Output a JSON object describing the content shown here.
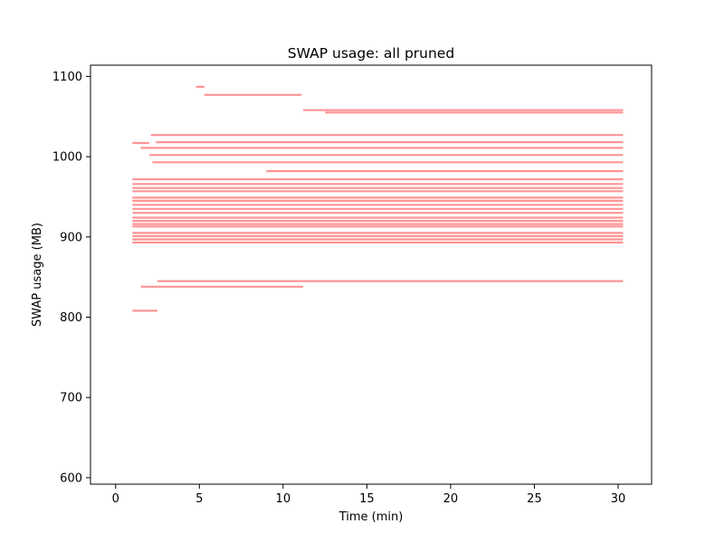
{
  "chart_data": {
    "type": "scatter",
    "title": "SWAP usage: all pruned",
    "xlabel": "Time (min)",
    "ylabel": "SWAP usage (MB)",
    "xlim": [
      -1.5,
      32.0
    ],
    "ylim": [
      592,
      1114
    ],
    "xticks": [
      0,
      5,
      10,
      15,
      20,
      25,
      30
    ],
    "yticks": [
      600,
      700,
      800,
      900,
      1000,
      1100
    ],
    "grid": false,
    "legend": "none",
    "colors": {
      "marker": "#ff0000",
      "axes": "#000000",
      "background": "#ffffff"
    },
    "series": [
      {
        "segments": [
          {
            "x": [
              4.8,
              5.3
            ],
            "y": [
              1087,
              1087
            ]
          },
          {
            "x": [
              5.3,
              11.1
            ],
            "y": [
              1077,
              1077
            ]
          },
          {
            "x": [
              11.2,
              30.3
            ],
            "y": [
              1058,
              1058
            ]
          },
          {
            "x": [
              12.5,
              30.3
            ],
            "y": [
              1055,
              1055
            ]
          },
          {
            "x": [
              2.1,
              30.3
            ],
            "y": [
              1027,
              1027
            ]
          },
          {
            "x": [
              2.4,
              30.3
            ],
            "y": [
              1018,
              1018
            ]
          },
          {
            "x": [
              1.0,
              2.0
            ],
            "y": [
              1017,
              1017
            ]
          },
          {
            "x": [
              1.5,
              30.3
            ],
            "y": [
              1011,
              1011
            ]
          },
          {
            "x": [
              2.0,
              30.3
            ],
            "y": [
              1002,
              1002
            ]
          },
          {
            "x": [
              2.2,
              30.3
            ],
            "y": [
              993,
              993
            ]
          },
          {
            "x": [
              9.0,
              30.3
            ],
            "y": [
              982,
              982
            ]
          },
          {
            "x": [
              1.0,
              30.3
            ],
            "y": [
              972,
              972
            ]
          },
          {
            "x": [
              1.0,
              30.3
            ],
            "y": [
              966,
              966
            ]
          },
          {
            "x": [
              1.0,
              30.3
            ],
            "y": [
              961,
              961
            ]
          },
          {
            "x": [
              1.0,
              30.3
            ],
            "y": [
              957,
              957
            ]
          },
          {
            "x": [
              1.0,
              30.3
            ],
            "y": [
              949,
              949
            ]
          },
          {
            "x": [
              1.0,
              30.3
            ],
            "y": [
              945,
              945
            ]
          },
          {
            "x": [
              1.0,
              30.3
            ],
            "y": [
              940,
              940
            ]
          },
          {
            "x": [
              1.0,
              30.3
            ],
            "y": [
              935,
              935
            ]
          },
          {
            "x": [
              1.0,
              30.3
            ],
            "y": [
              930,
              930
            ]
          },
          {
            "x": [
              1.0,
              30.3
            ],
            "y": [
              924,
              924
            ]
          },
          {
            "x": [
              1.0,
              30.3
            ],
            "y": [
              920,
              920
            ]
          },
          {
            "x": [
              1.0,
              30.3
            ],
            "y": [
              916,
              916
            ]
          },
          {
            "x": [
              1.0,
              30.3
            ],
            "y": [
              913,
              913
            ]
          },
          {
            "x": [
              1.0,
              30.3
            ],
            "y": [
              905,
              905
            ]
          },
          {
            "x": [
              1.0,
              30.3
            ],
            "y": [
              901,
              901
            ]
          },
          {
            "x": [
              1.0,
              30.3
            ],
            "y": [
              897,
              897
            ]
          },
          {
            "x": [
              1.0,
              30.3
            ],
            "y": [
              893,
              893
            ]
          },
          {
            "x": [
              2.5,
              30.3
            ],
            "y": [
              845,
              845
            ]
          },
          {
            "x": [
              1.5,
              11.2
            ],
            "y": [
              838,
              838
            ]
          },
          {
            "x": [
              1.0,
              2.5
            ],
            "y": [
              808,
              808
            ]
          }
        ]
      }
    ]
  }
}
